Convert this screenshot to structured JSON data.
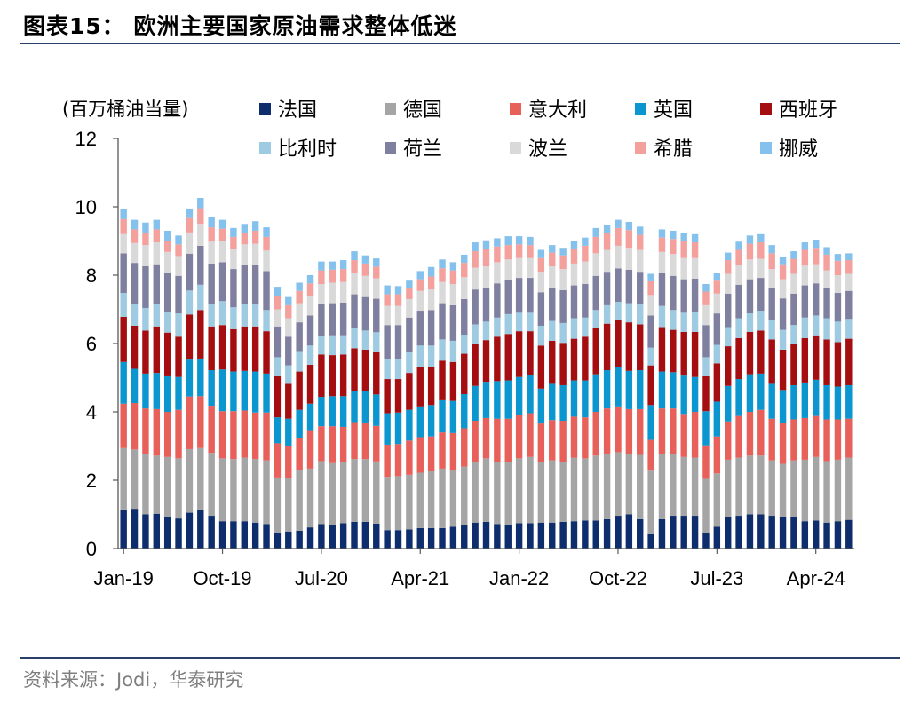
{
  "figure": {
    "title": "图表15：  欧洲主要国家原油需求整体低迷",
    "source": "资料来源：Jodi，华泰研究"
  },
  "chart_data": {
    "type": "bar",
    "stacked": true,
    "unit_label": "(百万桶油当量)",
    "ylim": [
      0,
      12
    ],
    "yticks": [
      "0",
      "2",
      "4",
      "6",
      "8",
      "10",
      "12"
    ],
    "xtick_labels": [
      "Jan-19",
      "Oct-19",
      "Jul-20",
      "Apr-21",
      "Jan-22",
      "Oct-22",
      "Jul-23",
      "Apr-24"
    ],
    "xtick_every": 9,
    "legend_position": "top",
    "series": [
      {
        "name": "法国",
        "color": "#0d2d6c",
        "values": [
          1.12,
          1.14,
          1.0,
          1.02,
          0.94,
          0.88,
          1.05,
          1.12,
          0.96,
          0.8,
          0.8,
          0.8,
          0.76,
          0.72,
          0.46,
          0.5,
          0.52,
          0.62,
          0.72,
          0.68,
          0.74,
          0.78,
          0.78,
          0.73,
          0.54,
          0.54,
          0.56,
          0.6,
          0.6,
          0.6,
          0.64,
          0.7,
          0.76,
          0.78,
          0.72,
          0.7,
          0.74,
          0.74,
          0.76,
          0.76,
          0.78,
          0.8,
          0.82,
          0.82,
          0.86,
          0.96,
          1.0,
          0.86,
          0.42,
          0.86,
          0.96,
          0.96,
          0.96,
          0.46,
          0.64,
          0.92,
          0.96,
          1.0,
          1.0,
          0.96,
          0.92,
          0.92,
          0.8,
          0.82,
          0.76,
          0.8,
          0.84
        ]
      },
      {
        "name": "德国",
        "color": "#a5a5a5",
        "values": [
          1.82,
          1.76,
          1.78,
          1.7,
          1.74,
          1.76,
          1.86,
          1.82,
          1.84,
          1.84,
          1.82,
          1.86,
          1.86,
          1.86,
          1.62,
          1.56,
          1.78,
          1.72,
          1.84,
          1.82,
          1.78,
          1.84,
          1.84,
          1.82,
          1.56,
          1.58,
          1.6,
          1.62,
          1.66,
          1.74,
          1.66,
          1.7,
          1.78,
          1.86,
          1.8,
          1.84,
          1.9,
          1.94,
          1.78,
          1.82,
          1.74,
          1.86,
          1.82,
          1.9,
          1.92,
          1.86,
          1.76,
          1.88,
          1.86,
          1.9,
          1.8,
          1.72,
          1.7,
          1.58,
          1.56,
          1.68,
          1.7,
          1.72,
          1.72,
          1.62,
          1.56,
          1.66,
          1.8,
          1.86,
          1.8,
          1.8,
          1.82
        ]
      },
      {
        "name": "意大利",
        "color": "#e8605a",
        "values": [
          1.3,
          1.36,
          1.32,
          1.36,
          1.32,
          1.42,
          1.54,
          1.52,
          1.38,
          1.38,
          1.4,
          1.38,
          1.36,
          1.4,
          1.0,
          0.94,
          0.94,
          1.1,
          1.02,
          1.08,
          1.04,
          1.08,
          1.06,
          1.04,
          0.94,
          0.94,
          1.0,
          1.04,
          1.02,
          1.06,
          1.08,
          1.12,
          1.2,
          1.18,
          1.28,
          1.26,
          1.28,
          1.28,
          1.12,
          1.18,
          1.22,
          1.2,
          1.2,
          1.28,
          1.32,
          1.34,
          1.32,
          1.34,
          0.9,
          1.34,
          1.34,
          1.26,
          1.34,
          0.98,
          1.08,
          1.12,
          1.22,
          1.28,
          1.34,
          1.22,
          1.2,
          1.2,
          1.22,
          1.2,
          1.22,
          1.18,
          1.14
        ]
      },
      {
        "name": "英国",
        "color": "#0c96d0",
        "values": [
          1.22,
          1.0,
          1.02,
          1.06,
          1.04,
          0.96,
          1.08,
          1.1,
          1.04,
          1.22,
          1.16,
          1.16,
          1.2,
          1.14,
          0.76,
          0.8,
          0.82,
          0.8,
          0.86,
          0.88,
          0.9,
          0.92,
          0.92,
          0.92,
          0.92,
          0.92,
          0.9,
          0.9,
          0.92,
          0.94,
          0.94,
          1.0,
          1.02,
          1.06,
          1.1,
          1.12,
          1.1,
          1.12,
          1.02,
          1.06,
          1.04,
          1.06,
          1.08,
          1.1,
          1.12,
          1.14,
          1.12,
          1.14,
          1.02,
          1.08,
          1.06,
          1.12,
          1.02,
          1.0,
          1.02,
          1.04,
          1.08,
          1.1,
          1.06,
          1.02,
          0.96,
          1.0,
          1.04,
          1.06,
          1.0,
          0.96,
          0.98
        ]
      },
      {
        "name": "西班牙",
        "color": "#a50e10",
        "values": [
          1.32,
          1.26,
          1.26,
          1.36,
          1.28,
          1.18,
          1.32,
          1.42,
          1.28,
          1.3,
          1.24,
          1.3,
          1.32,
          1.24,
          1.2,
          1.02,
          1.12,
          1.14,
          1.24,
          1.2,
          1.22,
          1.24,
          1.22,
          1.26,
          1.0,
          0.98,
          1.08,
          1.16,
          1.1,
          1.16,
          1.14,
          1.18,
          1.22,
          1.22,
          1.3,
          1.36,
          1.34,
          1.28,
          1.26,
          1.26,
          1.24,
          1.22,
          1.28,
          1.36,
          1.36,
          1.4,
          1.42,
          1.34,
          1.16,
          1.3,
          1.24,
          1.28,
          1.32,
          1.02,
          1.12,
          1.16,
          1.2,
          1.24,
          1.26,
          1.3,
          1.18,
          1.2,
          1.3,
          1.3,
          1.34,
          1.3,
          1.36
        ]
      },
      {
        "name": "比利时",
        "color": "#9ecbe1",
        "values": [
          0.7,
          0.64,
          0.66,
          0.66,
          0.6,
          0.68,
          0.7,
          0.74,
          0.64,
          0.7,
          0.64,
          0.66,
          0.64,
          0.62,
          0.56,
          0.54,
          0.6,
          0.56,
          0.54,
          0.58,
          0.56,
          0.6,
          0.56,
          0.56,
          0.58,
          0.58,
          0.62,
          0.62,
          0.64,
          0.62,
          0.62,
          0.56,
          0.58,
          0.54,
          0.56,
          0.58,
          0.54,
          0.54,
          0.58,
          0.58,
          0.58,
          0.6,
          0.56,
          0.52,
          0.54,
          0.52,
          0.56,
          0.58,
          0.52,
          0.62,
          0.58,
          0.56,
          0.58,
          0.56,
          0.54,
          0.56,
          0.58,
          0.54,
          0.58,
          0.56,
          0.58,
          0.56,
          0.6,
          0.58,
          0.62,
          0.6,
          0.58
        ]
      },
      {
        "name": "荷兰",
        "color": "#7f7f9f",
        "values": [
          1.16,
          1.2,
          1.22,
          1.16,
          1.16,
          1.1,
          1.08,
          1.14,
          1.2,
          1.14,
          1.12,
          1.14,
          1.16,
          1.14,
          0.9,
          0.84,
          0.84,
          0.88,
          0.94,
          0.94,
          0.96,
          0.98,
          0.98,
          0.98,
          1.0,
          1.0,
          1.0,
          1.02,
          1.04,
          1.06,
          1.04,
          1.04,
          1.02,
          1.0,
          1.0,
          1.0,
          1.02,
          1.02,
          0.98,
          0.98,
          0.96,
          0.96,
          0.98,
          1.0,
          0.98,
          0.98,
          0.98,
          0.96,
          0.94,
          0.96,
          1.0,
          0.98,
          0.98,
          0.94,
          0.92,
          0.98,
          0.98,
          1.0,
          0.96,
          0.94,
          0.92,
          0.92,
          0.94,
          0.94,
          0.88,
          0.84,
          0.82
        ]
      },
      {
        "name": "波兰",
        "color": "#d9d9d9",
        "values": [
          0.56,
          0.58,
          0.62,
          0.64,
          0.6,
          0.58,
          0.62,
          0.64,
          0.64,
          0.62,
          0.6,
          0.6,
          0.62,
          0.6,
          0.5,
          0.54,
          0.56,
          0.58,
          0.58,
          0.6,
          0.6,
          0.62,
          0.62,
          0.6,
          0.56,
          0.56,
          0.54,
          0.58,
          0.6,
          0.62,
          0.62,
          0.64,
          0.64,
          0.62,
          0.62,
          0.6,
          0.58,
          0.58,
          0.6,
          0.62,
          0.62,
          0.64,
          0.66,
          0.66,
          0.64,
          0.66,
          0.64,
          0.64,
          0.6,
          0.62,
          0.64,
          0.62,
          0.6,
          0.58,
          0.58,
          0.58,
          0.58,
          0.58,
          0.56,
          0.56,
          0.56,
          0.58,
          0.58,
          0.56,
          0.52,
          0.52,
          0.5
        ]
      },
      {
        "name": "希腊",
        "color": "#f4a09c",
        "values": [
          0.44,
          0.4,
          0.36,
          0.38,
          0.32,
          0.34,
          0.42,
          0.46,
          0.42,
          0.36,
          0.34,
          0.34,
          0.38,
          0.4,
          0.4,
          0.38,
          0.36,
          0.36,
          0.4,
          0.38,
          0.38,
          0.38,
          0.36,
          0.34,
          0.34,
          0.34,
          0.32,
          0.34,
          0.38,
          0.4,
          0.4,
          0.42,
          0.48,
          0.5,
          0.46,
          0.42,
          0.4,
          0.38,
          0.4,
          0.4,
          0.4,
          0.44,
          0.46,
          0.48,
          0.5,
          0.52,
          0.52,
          0.44,
          0.4,
          0.42,
          0.44,
          0.5,
          0.46,
          0.4,
          0.38,
          0.4,
          0.44,
          0.46,
          0.48,
          0.46,
          0.44,
          0.44,
          0.46,
          0.48,
          0.46,
          0.42,
          0.4
        ]
      },
      {
        "name": "挪威",
        "color": "#85c1ed",
        "values": [
          0.3,
          0.28,
          0.3,
          0.28,
          0.3,
          0.26,
          0.28,
          0.3,
          0.3,
          0.26,
          0.26,
          0.26,
          0.28,
          0.28,
          0.26,
          0.24,
          0.24,
          0.24,
          0.26,
          0.24,
          0.26,
          0.26,
          0.24,
          0.24,
          0.26,
          0.24,
          0.22,
          0.24,
          0.28,
          0.26,
          0.24,
          0.24,
          0.26,
          0.26,
          0.24,
          0.26,
          0.24,
          0.24,
          0.24,
          0.22,
          0.22,
          0.22,
          0.24,
          0.26,
          0.24,
          0.24,
          0.24,
          0.24,
          0.22,
          0.24,
          0.24,
          0.24,
          0.24,
          0.22,
          0.22,
          0.22,
          0.24,
          0.24,
          0.24,
          0.24,
          0.22,
          0.22,
          0.22,
          0.24,
          0.22,
          0.2,
          0.2
        ]
      }
    ]
  }
}
